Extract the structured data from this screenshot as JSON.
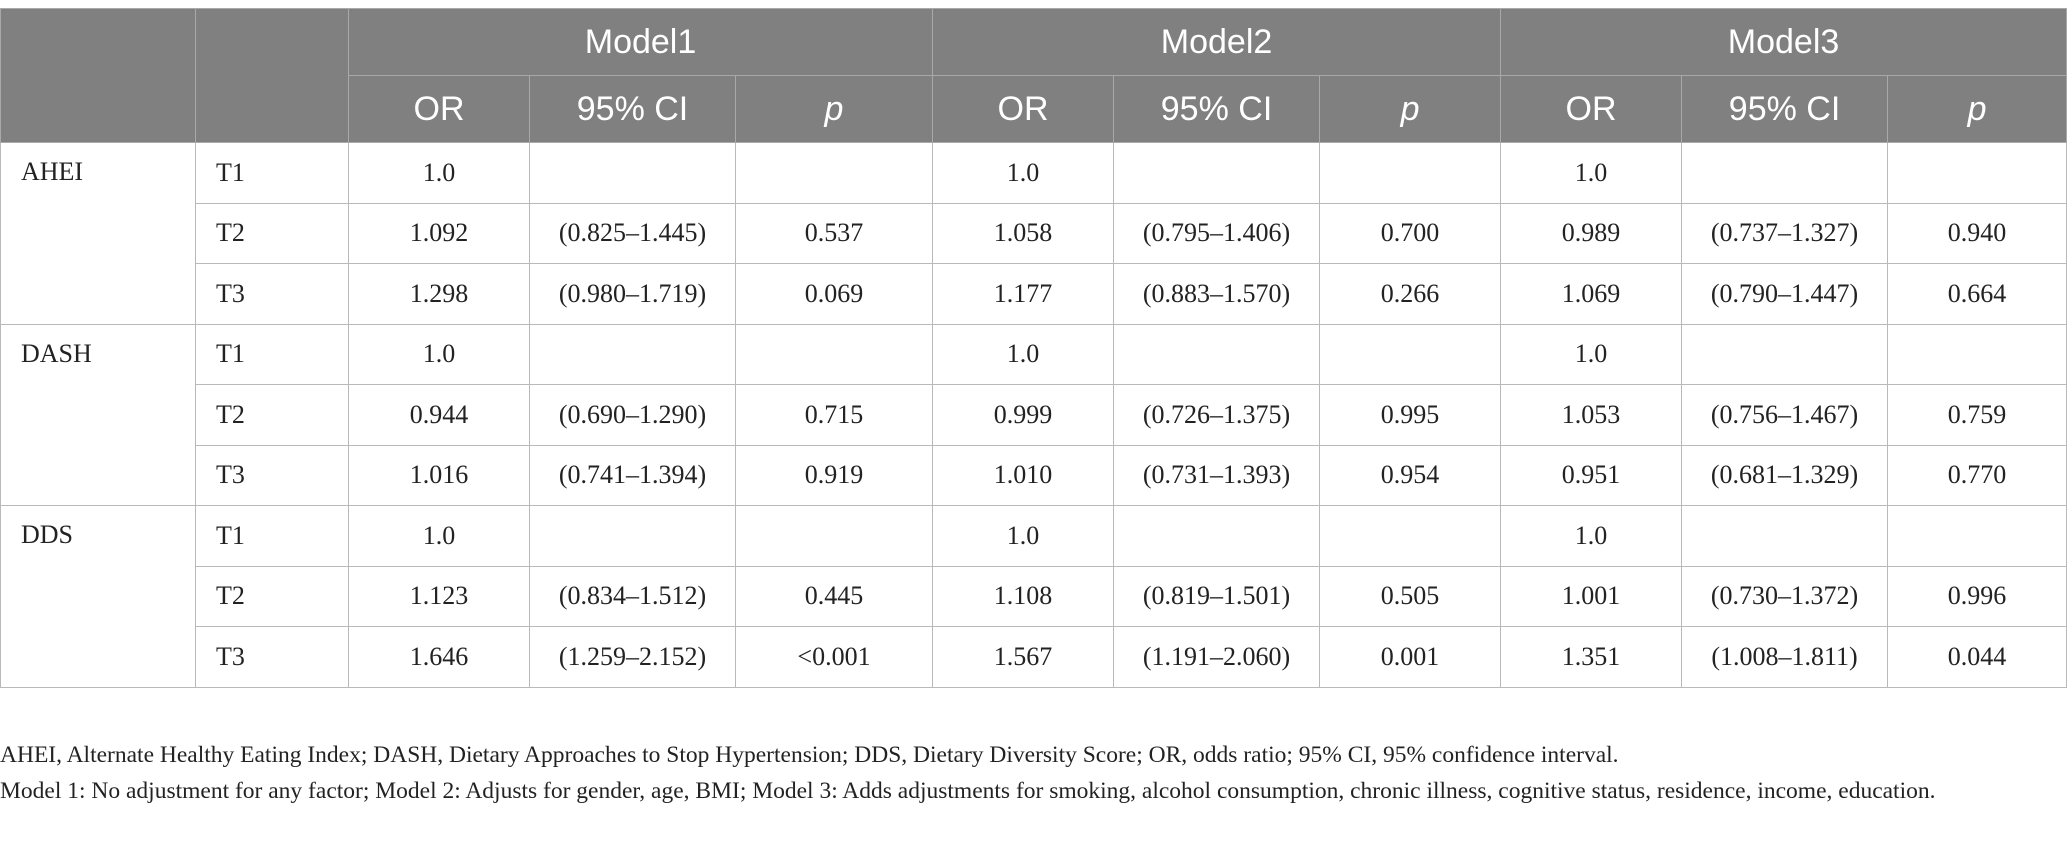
{
  "table": {
    "models": [
      "Model1",
      "Model2",
      "Model3"
    ],
    "subheaders": [
      "OR",
      "95% CI",
      "p"
    ],
    "groups": [
      {
        "name": "AHEI",
        "rows": [
          {
            "tier": "T1",
            "cells": [
              "1.0",
              "",
              "",
              "1.0",
              "",
              "",
              "1.0",
              "",
              ""
            ]
          },
          {
            "tier": "T2",
            "cells": [
              "1.092",
              "(0.825–1.445)",
              "0.537",
              "1.058",
              "(0.795–1.406)",
              "0.700",
              "0.989",
              "(0.737–1.327)",
              "0.940"
            ]
          },
          {
            "tier": "T3",
            "cells": [
              "1.298",
              "(0.980–1.719)",
              "0.069",
              "1.177",
              "(0.883–1.570)",
              "0.266",
              "1.069",
              "(0.790–1.447)",
              "0.664"
            ]
          }
        ]
      },
      {
        "name": "DASH",
        "rows": [
          {
            "tier": "T1",
            "cells": [
              "1.0",
              "",
              "",
              "1.0",
              "",
              "",
              "1.0",
              "",
              ""
            ]
          },
          {
            "tier": "T2",
            "cells": [
              "0.944",
              "(0.690–1.290)",
              "0.715",
              "0.999",
              "(0.726–1.375)",
              "0.995",
              "1.053",
              "(0.756–1.467)",
              "0.759"
            ]
          },
          {
            "tier": "T3",
            "cells": [
              "1.016",
              "(0.741–1.394)",
              "0.919",
              "1.010",
              "(0.731–1.393)",
              "0.954",
              "0.951",
              "(0.681–1.329)",
              "0.770"
            ]
          }
        ]
      },
      {
        "name": "DDS",
        "rows": [
          {
            "tier": "T1",
            "cells": [
              "1.0",
              "",
              "",
              "1.0",
              "",
              "",
              "1.0",
              "",
              ""
            ]
          },
          {
            "tier": "T2",
            "cells": [
              "1.123",
              "(0.834–1.512)",
              "0.445",
              "1.108",
              "(0.819–1.501)",
              "0.505",
              "1.001",
              "(0.730–1.372)",
              "0.996"
            ]
          },
          {
            "tier": "T3",
            "cells": [
              "1.646",
              "(1.259–2.152)",
              "<0.001",
              "1.567",
              "(1.191–2.060)",
              "0.001",
              "1.351",
              "(1.008–1.811)",
              "0.044"
            ]
          }
        ]
      }
    ]
  },
  "footnotes": [
    "AHEI, Alternate Healthy Eating Index; DASH, Dietary Approaches to Stop Hypertension; DDS, Dietary Diversity Score; OR, odds ratio; 95% CI, 95% confidence interval.",
    "Model 1: No adjustment for any factor; Model 2: Adjusts for gender, age, BMI; Model 3: Adds adjustments for smoking, alcohol consumption, chronic illness, cognitive status, residence, income, education."
  ],
  "colors": {
    "header_bg": "#808080",
    "header_text": "#ffffff",
    "border": "#b9b9b9",
    "body_text": "#222222"
  }
}
